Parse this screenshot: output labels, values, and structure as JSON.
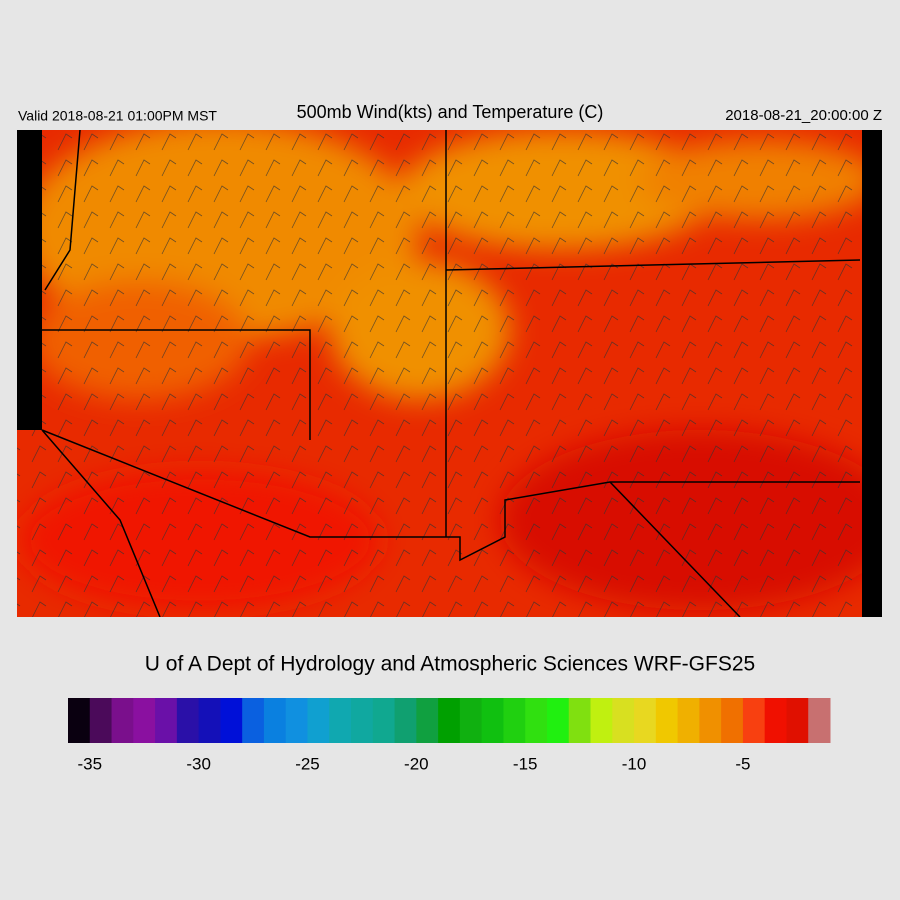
{
  "header": {
    "valid": "Valid 2018-08-21 01:00PM MST",
    "title": "500mb Wind(kts) and Temperature (C)",
    "timestamp": "2018-08-21_20:00:00 Z"
  },
  "credit": "U of A Dept of Hydrology and Atmospheric Sciences WRF-GFS25",
  "colorbar": {
    "range": [
      -36,
      -1
    ],
    "colors": [
      "#0a0010",
      "#4b0a5a",
      "#7a0f8c",
      "#8a10a0",
      "#6a10a8",
      "#2a10a8",
      "#1410b8",
      "#0010d8",
      "#0a60e0",
      "#0a80e0",
      "#1090e0",
      "#10a0d0",
      "#10a8b0",
      "#10a8a0",
      "#10a890",
      "#10a070",
      "#10a040",
      "#00a000",
      "#10b010",
      "#10c010",
      "#20d010",
      "#30e010",
      "#20f010",
      "#80e010",
      "#c0f010",
      "#d8e020",
      "#e8d820",
      "#f0c800",
      "#f0b000",
      "#f09000",
      "#f07000",
      "#f84010",
      "#f01000",
      "#e01000",
      "#c87070"
    ],
    "ticks": [
      -35,
      -30,
      -25,
      -20,
      -15,
      -10,
      -5
    ]
  }
}
